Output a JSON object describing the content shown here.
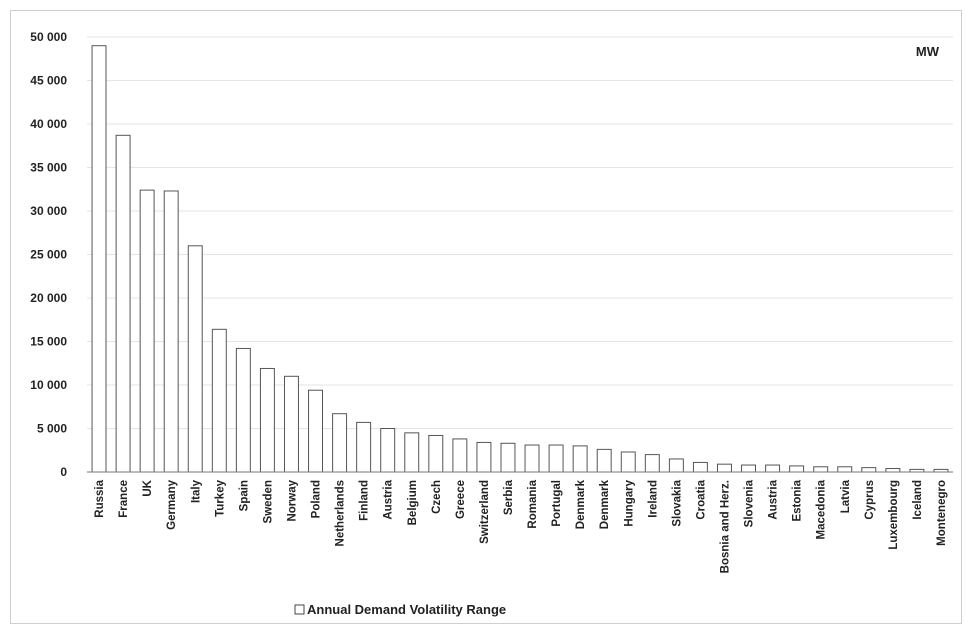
{
  "chart_data": {
    "type": "bar",
    "unit_label": "MW",
    "legend": {
      "label": "Annual Demand Volatility Range",
      "placement": "bottom-left"
    },
    "grid": true,
    "ylim": [
      0,
      50000
    ],
    "yticks": [
      0,
      5000,
      10000,
      15000,
      20000,
      25000,
      30000,
      35000,
      40000,
      45000,
      50000
    ],
    "ytick_labels": [
      "0",
      "5 000",
      "10 000",
      "15 000",
      "20 000",
      "25 000",
      "30 000",
      "35 000",
      "40 000",
      "45 000",
      "50 000"
    ],
    "categories": [
      "Russia",
      "France",
      "UK",
      "Germany",
      "Italy",
      "Turkey",
      "Spain",
      "Sweden",
      "Norway",
      "Poland",
      "Netherlands",
      "Finland",
      "Austria",
      "Belgium",
      "Czech",
      "Greece",
      "Switzerland",
      "Serbia",
      "Romania",
      "Portugal",
      "Denmark",
      "Denmark",
      "Hungary",
      "Ireland",
      "Slovakia",
      "Croatia",
      "Bosnia and Herz.",
      "Slovenia",
      "Austria",
      "Estonia",
      "Macedonia",
      "Latvia",
      "Cyprus",
      "Luxembourg",
      "Iceland",
      "Montenegro"
    ],
    "values": [
      49000,
      38700,
      32400,
      32300,
      26000,
      16400,
      14200,
      11900,
      11000,
      9400,
      6700,
      5700,
      5000,
      4500,
      4200,
      3800,
      3400,
      3300,
      3100,
      3100,
      3000,
      2600,
      2300,
      2000,
      1500,
      1100,
      900,
      800,
      800,
      700,
      600,
      600,
      500,
      400,
      300,
      300
    ]
  }
}
